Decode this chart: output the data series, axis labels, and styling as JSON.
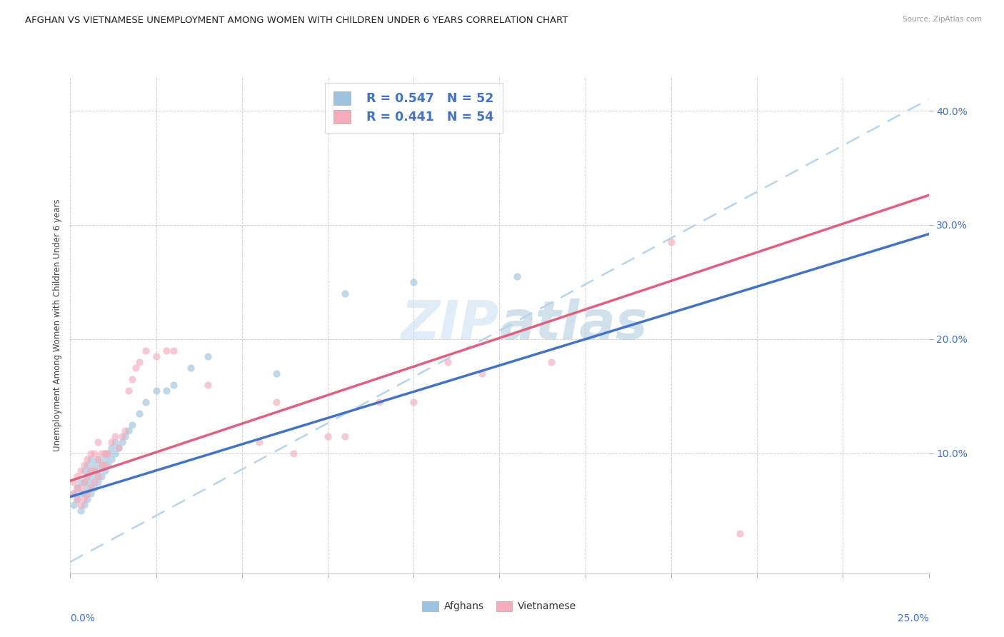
{
  "title": "AFGHAN VS VIETNAMESE UNEMPLOYMENT AMONG WOMEN WITH CHILDREN UNDER 6 YEARS CORRELATION CHART",
  "source": "Source: ZipAtlas.com",
  "ylabel": "Unemployment Among Women with Children Under 6 years",
  "xmin": 0.0,
  "xmax": 0.25,
  "ymin": -0.005,
  "ymax": 0.43,
  "ytick_vals": [
    0.1,
    0.2,
    0.3,
    0.4
  ],
  "ytick_labels": [
    "10.0%",
    "20.0%",
    "30.0%",
    "40.0%"
  ],
  "xtick_minor_vals": [
    0.025,
    0.05,
    0.075,
    0.1,
    0.125,
    0.15,
    0.175,
    0.2,
    0.225
  ],
  "legend_R1": "R = 0.547",
  "legend_N1": "N = 52",
  "legend_R2": "R = 0.441",
  "legend_N2": "N = 54",
  "color_afghan": "#9dc3e0",
  "color_vietnamese": "#f4acbb",
  "color_trend_afghan_solid": "#4472c4",
  "color_trend_vietnamese_solid": "#e06080",
  "color_trend_dashed": "#b8d4ea",
  "watermark_color": "#cce0f0",
  "background_color": "#ffffff",
  "scatter_size": 55,
  "scatter_alpha": 0.65,
  "dashed_slope": 1.62,
  "dashed_intercept": 0.005,
  "afghan_trend_intercept": 0.062,
  "afghan_trend_slope": 0.92,
  "vietnamese_trend_intercept": 0.076,
  "vietnamese_trend_slope": 1.0,
  "afghan_x": [
    0.001,
    0.001,
    0.002,
    0.002,
    0.003,
    0.003,
    0.003,
    0.004,
    0.004,
    0.004,
    0.004,
    0.005,
    0.005,
    0.005,
    0.005,
    0.006,
    0.006,
    0.006,
    0.006,
    0.007,
    0.007,
    0.007,
    0.008,
    0.008,
    0.008,
    0.009,
    0.009,
    0.01,
    0.01,
    0.01,
    0.011,
    0.011,
    0.012,
    0.012,
    0.013,
    0.013,
    0.014,
    0.015,
    0.016,
    0.017,
    0.018,
    0.02,
    0.022,
    0.025,
    0.028,
    0.03,
    0.035,
    0.04,
    0.06,
    0.08,
    0.1,
    0.13
  ],
  "afghan_y": [
    0.055,
    0.065,
    0.06,
    0.07,
    0.05,
    0.065,
    0.075,
    0.055,
    0.065,
    0.075,
    0.085,
    0.06,
    0.07,
    0.08,
    0.09,
    0.065,
    0.075,
    0.085,
    0.095,
    0.07,
    0.08,
    0.09,
    0.075,
    0.085,
    0.095,
    0.08,
    0.09,
    0.085,
    0.095,
    0.1,
    0.09,
    0.1,
    0.095,
    0.105,
    0.1,
    0.11,
    0.105,
    0.11,
    0.115,
    0.12,
    0.125,
    0.135,
    0.145,
    0.155,
    0.155,
    0.16,
    0.175,
    0.185,
    0.17,
    0.24,
    0.25,
    0.255
  ],
  "vietnamese_x": [
    0.001,
    0.001,
    0.002,
    0.002,
    0.002,
    0.003,
    0.003,
    0.003,
    0.004,
    0.004,
    0.004,
    0.005,
    0.005,
    0.005,
    0.006,
    0.006,
    0.006,
    0.007,
    0.007,
    0.007,
    0.008,
    0.008,
    0.008,
    0.009,
    0.009,
    0.01,
    0.01,
    0.011,
    0.012,
    0.013,
    0.014,
    0.015,
    0.016,
    0.017,
    0.018,
    0.019,
    0.02,
    0.022,
    0.025,
    0.028,
    0.03,
    0.04,
    0.055,
    0.06,
    0.065,
    0.075,
    0.08,
    0.09,
    0.1,
    0.11,
    0.12,
    0.14,
    0.175,
    0.195
  ],
  "vietnamese_y": [
    0.065,
    0.075,
    0.06,
    0.07,
    0.08,
    0.055,
    0.07,
    0.085,
    0.06,
    0.075,
    0.09,
    0.065,
    0.08,
    0.095,
    0.07,
    0.085,
    0.1,
    0.075,
    0.085,
    0.1,
    0.08,
    0.095,
    0.11,
    0.09,
    0.1,
    0.09,
    0.1,
    0.1,
    0.11,
    0.115,
    0.105,
    0.115,
    0.12,
    0.155,
    0.165,
    0.175,
    0.18,
    0.19,
    0.185,
    0.19,
    0.19,
    0.16,
    0.11,
    0.145,
    0.1,
    0.115,
    0.115,
    0.145,
    0.145,
    0.18,
    0.17,
    0.18,
    0.285,
    0.03
  ]
}
